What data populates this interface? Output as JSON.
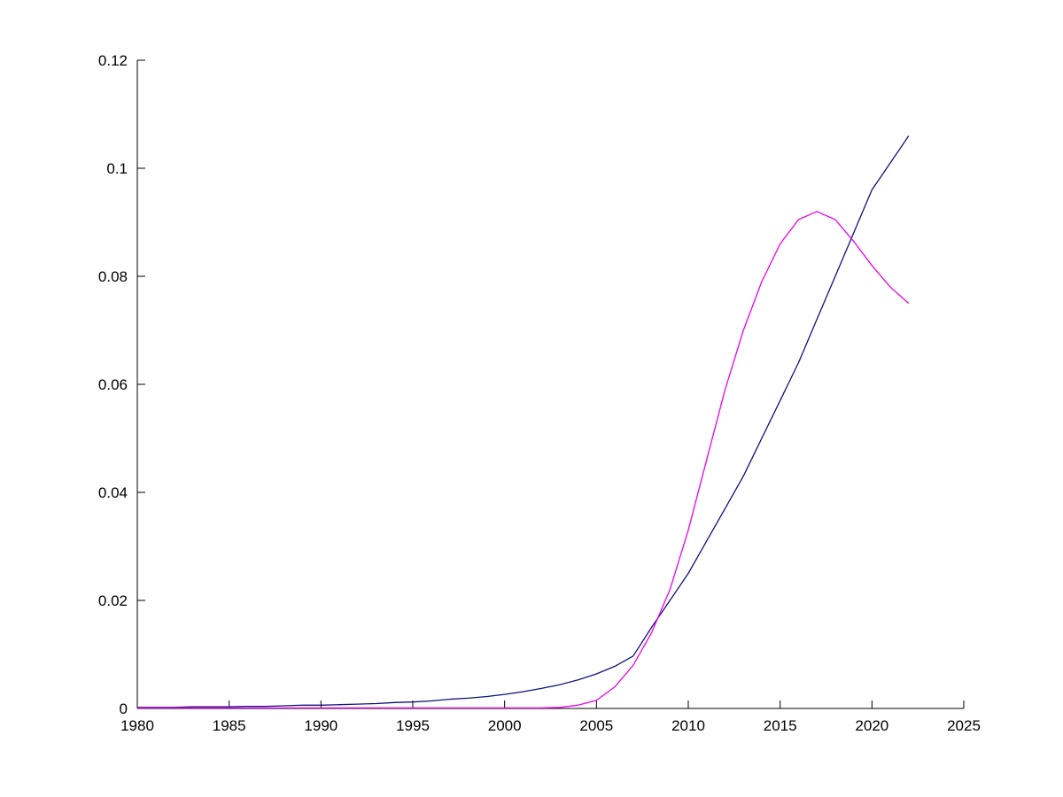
{
  "figure": {
    "background": "#ffffff"
  },
  "chart_data": {
    "type": "line",
    "title": "",
    "xlabel": "",
    "ylabel": "",
    "xlim": [
      1980,
      2025
    ],
    "ylim": [
      0,
      0.12
    ],
    "grid": false,
    "legend": null,
    "axis_color": "#000000",
    "x_ticks": [
      {
        "value": 1980,
        "label": "1980"
      },
      {
        "value": 1985,
        "label": "1985"
      },
      {
        "value": 1990,
        "label": "1990"
      },
      {
        "value": 1995,
        "label": "1995"
      },
      {
        "value": 2000,
        "label": "2000"
      },
      {
        "value": 2005,
        "label": "2005"
      },
      {
        "value": 2010,
        "label": "2010"
      },
      {
        "value": 2015,
        "label": "2015"
      },
      {
        "value": 2020,
        "label": "2020"
      },
      {
        "value": 2025,
        "label": "2025"
      }
    ],
    "y_ticks": [
      {
        "value": 0,
        "label": "0"
      },
      {
        "value": 0.02,
        "label": "0.02"
      },
      {
        "value": 0.04,
        "label": "0.04"
      },
      {
        "value": 0.06,
        "label": "0.06"
      },
      {
        "value": 0.08,
        "label": "0.08"
      },
      {
        "value": 0.1,
        "label": "0.1"
      },
      {
        "value": 0.12,
        "label": "0.12"
      }
    ],
    "x": [
      1980,
      1981,
      1982,
      1983,
      1984,
      1985,
      1986,
      1987,
      1988,
      1989,
      1990,
      1991,
      1992,
      1993,
      1994,
      1995,
      1996,
      1997,
      1998,
      1999,
      2000,
      2001,
      2002,
      2003,
      2004,
      2005,
      2006,
      2007,
      2008,
      2009,
      2010,
      2011,
      2012,
      2013,
      2014,
      2015,
      2016,
      2017,
      2018,
      2019,
      2020,
      2021,
      2022
    ],
    "series": [
      {
        "name": "dark-blue",
        "color": "#10107e",
        "values": [
          0.0002,
          0.0002,
          0.0002,
          0.0003,
          0.0003,
          0.0003,
          0.0004,
          0.0004,
          0.0005,
          0.0006,
          0.0006,
          0.0007,
          0.0008,
          0.0009,
          0.0011,
          0.0012,
          0.0014,
          0.0017,
          0.0019,
          0.0022,
          0.0026,
          0.0031,
          0.0037,
          0.0044,
          0.0053,
          0.0064,
          0.0078,
          0.0097,
          0.015,
          0.02,
          0.025,
          0.031,
          0.037,
          0.043,
          0.05,
          0.057,
          0.064,
          0.072,
          0.08,
          0.088,
          0.096,
          0.101,
          0.106
        ]
      },
      {
        "name": "magenta",
        "color": "#ee00ee",
        "values": [
          0.0001,
          0.0001,
          0.0001,
          0.0001,
          0.0001,
          0.0001,
          0.0001,
          0.0001,
          0.0001,
          0.0001,
          0.0001,
          0.0001,
          0.0001,
          0.0001,
          0.0001,
          0.0001,
          0.0001,
          0.0001,
          0.0001,
          0.0001,
          0.0001,
          0.0001,
          0.0001,
          0.0002,
          0.0006,
          0.0015,
          0.004,
          0.008,
          0.014,
          0.022,
          0.033,
          0.046,
          0.059,
          0.07,
          0.079,
          0.086,
          0.0905,
          0.092,
          0.0905,
          0.0865,
          0.082,
          0.078,
          0.075
        ]
      }
    ]
  }
}
